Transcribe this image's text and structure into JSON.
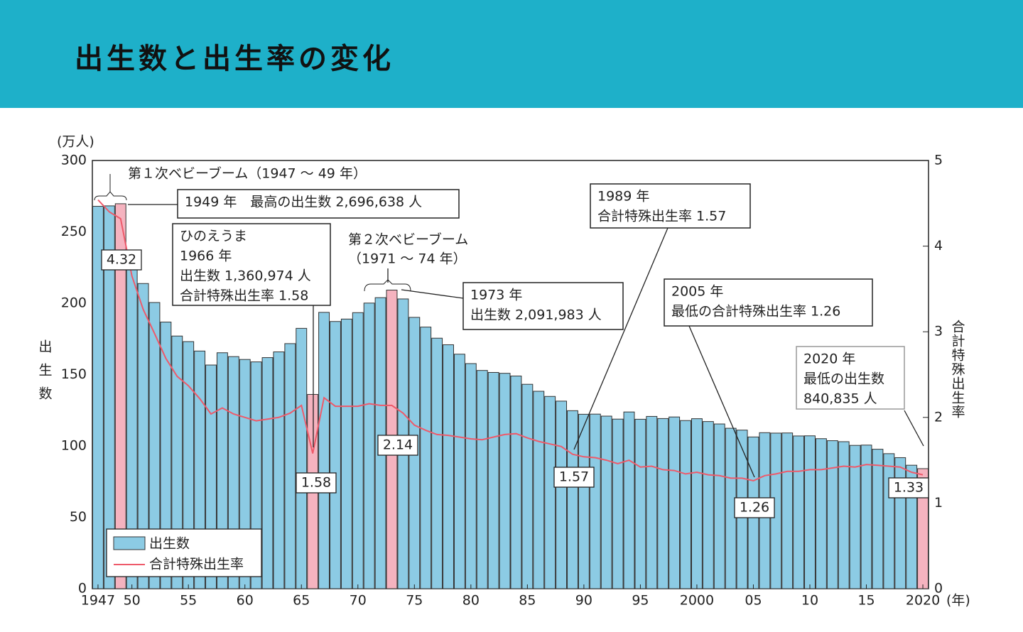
{
  "header": {
    "title": "出生数と出生率の変化"
  },
  "chart_data": {
    "type": "bar_line",
    "y_label": "出生数",
    "y_unit": "(万人)",
    "y2_label": "合計特殊出生率",
    "x_unit": "(年)",
    "categories": [
      "1947",
      null,
      null,
      "50",
      null,
      null,
      null,
      null,
      "55",
      null,
      null,
      null,
      null,
      "60",
      null,
      null,
      null,
      null,
      "65",
      null,
      null,
      null,
      null,
      "70",
      null,
      null,
      null,
      null,
      "75",
      null,
      null,
      null,
      null,
      "80",
      null,
      null,
      null,
      null,
      "85",
      null,
      null,
      null,
      null,
      "90",
      null,
      null,
      null,
      null,
      "95",
      null,
      null,
      null,
      null,
      "2000",
      null,
      null,
      null,
      null,
      "05",
      null,
      null,
      null,
      null,
      "10",
      null,
      null,
      null,
      null,
      "15",
      null,
      null,
      null,
      null,
      "2020"
    ],
    "series": [
      {
        "name": "出生数",
        "color": "#8ccbe4",
        "values": [
          267.9,
          268.2,
          269.7,
          233.8,
          213.8,
          200.5,
          186.8,
          177.0,
          173.1,
          166.5,
          156.7,
          165.3,
          162.6,
          160.6,
          158.9,
          161.9,
          165.9,
          171.7,
          182.4,
          136.1,
          193.6,
          187.2,
          188.9,
          193.4,
          200.1,
          203.9,
          209.2,
          203.0,
          190.1,
          183.3,
          175.5,
          170.9,
          164.3,
          157.7,
          152.9,
          151.5,
          150.9,
          149.0,
          143.2,
          138.3,
          134.7,
          131.4,
          124.7,
          122.2,
          122.3,
          120.9,
          118.8,
          123.8,
          118.7,
          120.7,
          119.2,
          120.3,
          117.8,
          119.1,
          117.1,
          115.4,
          112.4,
          111.1,
          106.3,
          109.3,
          109.0,
          109.1,
          107.0,
          107.1,
          105.1,
          103.7,
          103.0,
          100.4,
          100.6,
          97.7,
          94.6,
          91.8,
          86.5,
          84.1
        ]
      },
      {
        "name": "合計特殊出生率",
        "color": "#ee5a6a",
        "axis": "y2",
        "values": [
          4.54,
          4.4,
          4.32,
          3.65,
          3.26,
          2.98,
          2.69,
          2.48,
          2.37,
          2.22,
          2.04,
          2.11,
          2.04,
          2.0,
          1.96,
          1.98,
          2.0,
          2.05,
          2.14,
          1.58,
          2.23,
          2.13,
          2.13,
          2.13,
          2.16,
          2.14,
          2.14,
          2.05,
          1.91,
          1.85,
          1.8,
          1.79,
          1.77,
          1.75,
          1.74,
          1.77,
          1.8,
          1.81,
          1.76,
          1.72,
          1.69,
          1.66,
          1.57,
          1.54,
          1.53,
          1.5,
          1.46,
          1.5,
          1.42,
          1.43,
          1.39,
          1.38,
          1.34,
          1.36,
          1.33,
          1.32,
          1.29,
          1.29,
          1.26,
          1.32,
          1.34,
          1.37,
          1.37,
          1.39,
          1.39,
          1.41,
          1.43,
          1.42,
          1.45,
          1.44,
          1.43,
          1.42,
          1.36,
          1.33
        ]
      }
    ],
    "highlight": {
      "color": "#f5b3bf",
      "indices": [
        2,
        19,
        26,
        73
      ]
    },
    "labeled_points": [
      2,
      19,
      26,
      42,
      58,
      73
    ],
    "ylim": [
      0,
      300
    ],
    "yticks": [
      0,
      50,
      100,
      150,
      200,
      250,
      300
    ],
    "y2lim": [
      0,
      5
    ],
    "y2ticks": [
      0,
      1,
      2,
      3,
      4,
      5
    ],
    "legend": "lower left",
    "annotations": [
      {
        "lines": [
          "第１次ベビーブーム（1947 ～ 49 年）"
        ]
      },
      {
        "lines": [
          "1949 年　最高の出生数 2,696,638 人"
        ]
      },
      {
        "lines": [
          "ひのえうま",
          "1966 年",
          "出生数 1,360,974 人",
          "合計特殊出生率 1.58"
        ]
      },
      {
        "lines": [
          "第２次ベビーブーム",
          "（1971 ～ 74 年）"
        ]
      },
      {
        "lines": [
          "1973 年",
          "出生数 2,091,983 人"
        ]
      },
      {
        "lines": [
          "1989 年",
          "合計特殊出生率 1.57"
        ]
      },
      {
        "lines": [
          "2005 年",
          "最低の合計特殊出生率 1.26"
        ]
      },
      {
        "lines": [
          "2020 年",
          "最低の出生数",
          "840,835 人"
        ]
      }
    ]
  }
}
